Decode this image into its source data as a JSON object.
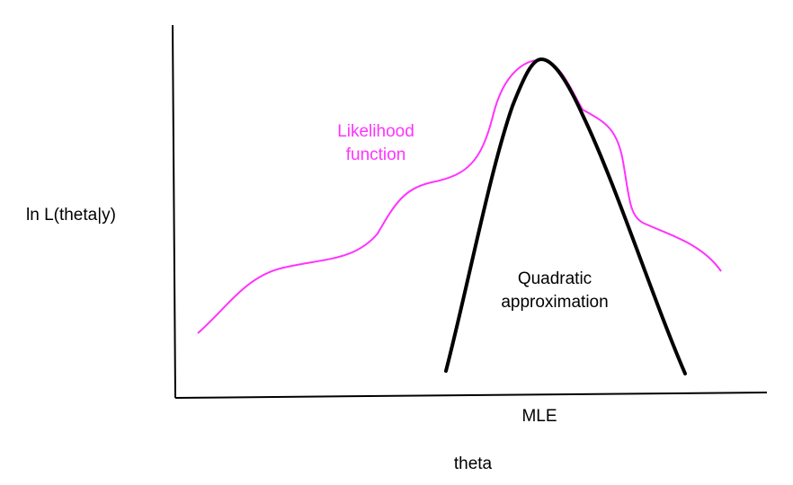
{
  "labels": {
    "y_axis": "ln L(theta|y)",
    "x_axis": "theta",
    "mle": "MLE",
    "likelihood_line1": "Likelihood",
    "likelihood_line2": "function",
    "quadratic_line1": "Quadratic",
    "quadratic_line2": "approximation"
  },
  "colors": {
    "axes": "#000000",
    "likelihood_curve": "#ff33ff",
    "likelihood_text": "#ff33ff",
    "quadratic_curve": "#000000",
    "text": "#000000"
  }
}
